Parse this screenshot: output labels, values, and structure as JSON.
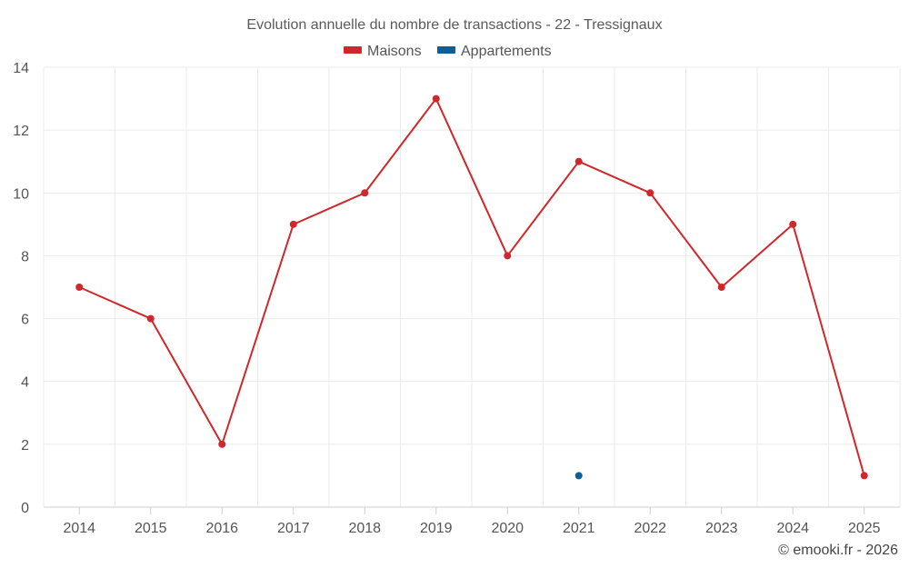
{
  "chart_data": {
    "type": "line",
    "title": "Evolution annuelle du nombre de transactions - 22 - Tressignaux",
    "categories": [
      "2014",
      "2015",
      "2016",
      "2017",
      "2018",
      "2019",
      "2020",
      "2021",
      "2022",
      "2023",
      "2024",
      "2025"
    ],
    "ylim": [
      0,
      14
    ],
    "yticks": [
      0,
      2,
      4,
      6,
      8,
      10,
      12,
      14
    ],
    "grid": true,
    "legend_position": "top-center",
    "series": [
      {
        "name": "Maisons",
        "color": "#d0272b",
        "values": [
          7,
          6,
          2,
          9,
          10,
          13,
          8,
          11,
          10,
          7,
          9,
          1
        ]
      },
      {
        "name": "Appartements",
        "color": "#0f5e94",
        "values": [
          null,
          null,
          null,
          null,
          null,
          null,
          null,
          1,
          null,
          null,
          null,
          null
        ]
      }
    ]
  },
  "credit": "© emooki.fr - 2026"
}
